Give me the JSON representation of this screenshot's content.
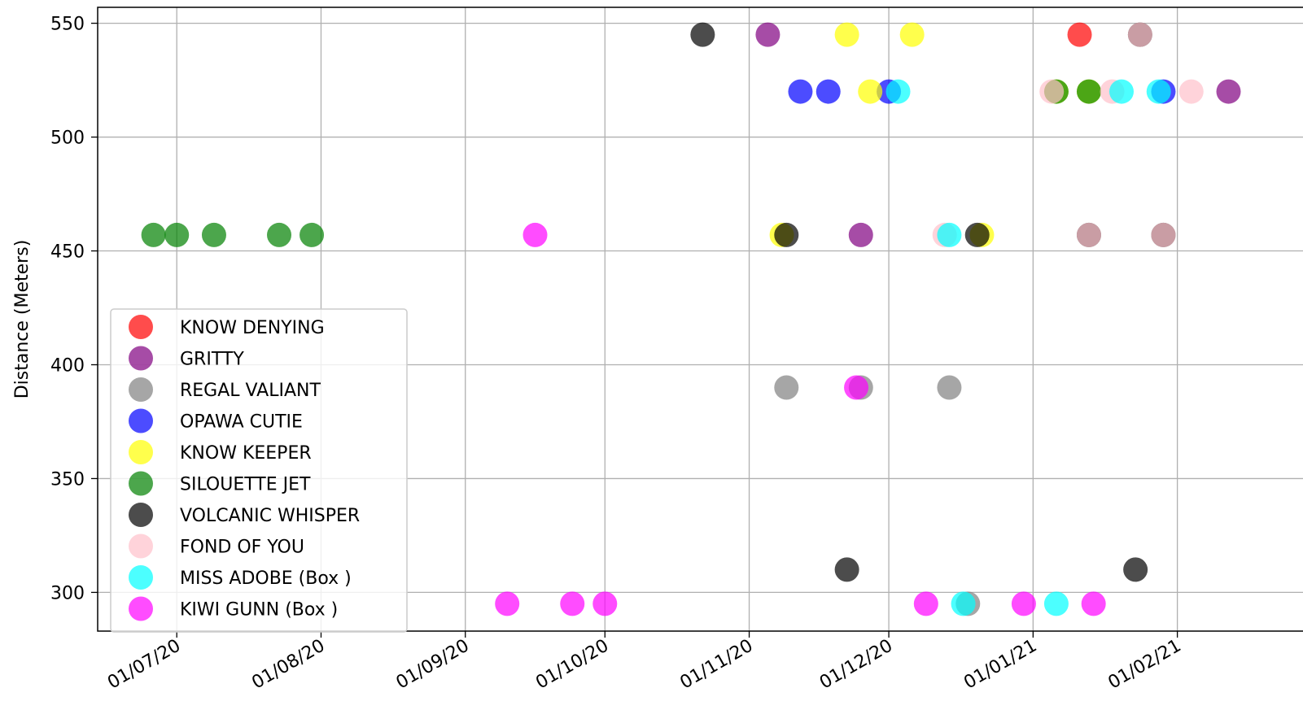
{
  "chart_data": {
    "type": "scatter",
    "title": "",
    "xlabel": "",
    "ylabel": "Distance (Meters)",
    "x_axis": {
      "type": "date",
      "xlim": [
        "2020-06-14",
        "2021-02-28"
      ],
      "ticks": [
        {
          "date": "2020-07-01",
          "label": "01/07/20"
        },
        {
          "date": "2020-08-01",
          "label": "01/08/20"
        },
        {
          "date": "2020-09-01",
          "label": "01/09/20"
        },
        {
          "date": "2020-10-01",
          "label": "01/10/20"
        },
        {
          "date": "2020-11-01",
          "label": "01/11/20"
        },
        {
          "date": "2020-12-01",
          "label": "01/12/20"
        },
        {
          "date": "2021-01-01",
          "label": "01/01/21"
        },
        {
          "date": "2021-02-01",
          "label": "01/02/21"
        }
      ]
    },
    "y_axis": {
      "ylim": [
        283,
        557
      ],
      "ticks": [
        300,
        350,
        400,
        450,
        500,
        550
      ]
    },
    "grid": true,
    "legend_position": "lower-left",
    "marker_alpha": 0.7,
    "series": [
      {
        "name": "KNOW DENYING",
        "color": "#ff0000",
        "points": [
          {
            "x": "2021-01-11",
            "y": 545
          }
        ]
      },
      {
        "name": "GRITTY",
        "color": "#800080",
        "points": [
          {
            "x": "2020-11-05",
            "y": 545
          },
          {
            "x": "2020-11-25",
            "y": 457
          },
          {
            "x": "2021-02-12",
            "y": 520
          }
        ]
      },
      {
        "name": "REGAL VALIANT",
        "color": "#808080",
        "points": [
          {
            "x": "2020-11-09",
            "y": 390
          },
          {
            "x": "2020-11-25",
            "y": 390
          },
          {
            "x": "2020-12-14",
            "y": 390
          },
          {
            "x": "2020-12-18",
            "y": 295
          }
        ]
      },
      {
        "name": "OPAWA CUTIE",
        "color": "#0000ff",
        "points": [
          {
            "x": "2020-11-12",
            "y": 520
          },
          {
            "x": "2020-11-18",
            "y": 520
          },
          {
            "x": "2020-12-01",
            "y": 520
          },
          {
            "x": "2021-01-29",
            "y": 520
          }
        ]
      },
      {
        "name": "KNOW KEEPER",
        "color": "#ffff00",
        "points": [
          {
            "x": "2020-11-22",
            "y": 545
          },
          {
            "x": "2020-11-27",
            "y": 520
          },
          {
            "x": "2020-11-08",
            "y": 457
          },
          {
            "x": "2020-12-21",
            "y": 457
          },
          {
            "x": "2020-12-06",
            "y": 545
          },
          {
            "x": "2021-01-06",
            "y": 520
          },
          {
            "x": "2021-01-13",
            "y": 520
          }
        ]
      },
      {
        "name": "SILOUETTE JET",
        "color": "#008000",
        "points": [
          {
            "x": "2020-06-26",
            "y": 457
          },
          {
            "x": "2020-07-01",
            "y": 457
          },
          {
            "x": "2020-07-09",
            "y": 457
          },
          {
            "x": "2020-07-23",
            "y": 457
          },
          {
            "x": "2020-07-30",
            "y": 457
          },
          {
            "x": "2021-01-06",
            "y": 520
          },
          {
            "x": "2021-01-13",
            "y": 520
          }
        ]
      },
      {
        "name": "VOLCANIC WHISPER",
        "color": "#000000",
        "points": [
          {
            "x": "2020-10-22",
            "y": 545
          },
          {
            "x": "2020-11-09",
            "y": 457
          },
          {
            "x": "2020-11-22",
            "y": 310
          },
          {
            "x": "2020-12-20",
            "y": 457
          },
          {
            "x": "2021-01-23",
            "y": 310
          },
          {
            "x": "2021-01-24",
            "y": 545
          },
          {
            "x": "2021-01-29",
            "y": 457
          },
          {
            "x": "2021-01-13",
            "y": 457
          }
        ]
      },
      {
        "name": "FOND OF YOU",
        "color": "#ffc0cb",
        "points": [
          {
            "x": "2021-01-05",
            "y": 520
          },
          {
            "x": "2021-01-18",
            "y": 520
          },
          {
            "x": "2021-02-04",
            "y": 520
          },
          {
            "x": "2020-12-13",
            "y": 457
          },
          {
            "x": "2021-01-13",
            "y": 457
          },
          {
            "x": "2021-01-24",
            "y": 545
          },
          {
            "x": "2021-01-29",
            "y": 457
          }
        ]
      },
      {
        "name": "MISS ADOBE (Box )",
        "color": "#00ffff",
        "points": [
          {
            "x": "2020-12-03",
            "y": 520
          },
          {
            "x": "2021-01-20",
            "y": 520
          },
          {
            "x": "2021-01-28",
            "y": 520
          },
          {
            "x": "2020-12-14",
            "y": 457
          },
          {
            "x": "2020-12-17",
            "y": 295
          },
          {
            "x": "2021-01-06",
            "y": 295
          }
        ]
      },
      {
        "name": "KIWI GUNN (Box )",
        "color": "#ff00ff",
        "points": [
          {
            "x": "2020-09-10",
            "y": 295
          },
          {
            "x": "2020-09-16",
            "y": 457
          },
          {
            "x": "2020-09-24",
            "y": 295
          },
          {
            "x": "2020-10-01",
            "y": 295
          },
          {
            "x": "2020-11-24",
            "y": 390
          },
          {
            "x": "2020-12-09",
            "y": 295
          },
          {
            "x": "2020-12-30",
            "y": 295
          },
          {
            "x": "2021-01-14",
            "y": 295
          }
        ]
      }
    ]
  }
}
